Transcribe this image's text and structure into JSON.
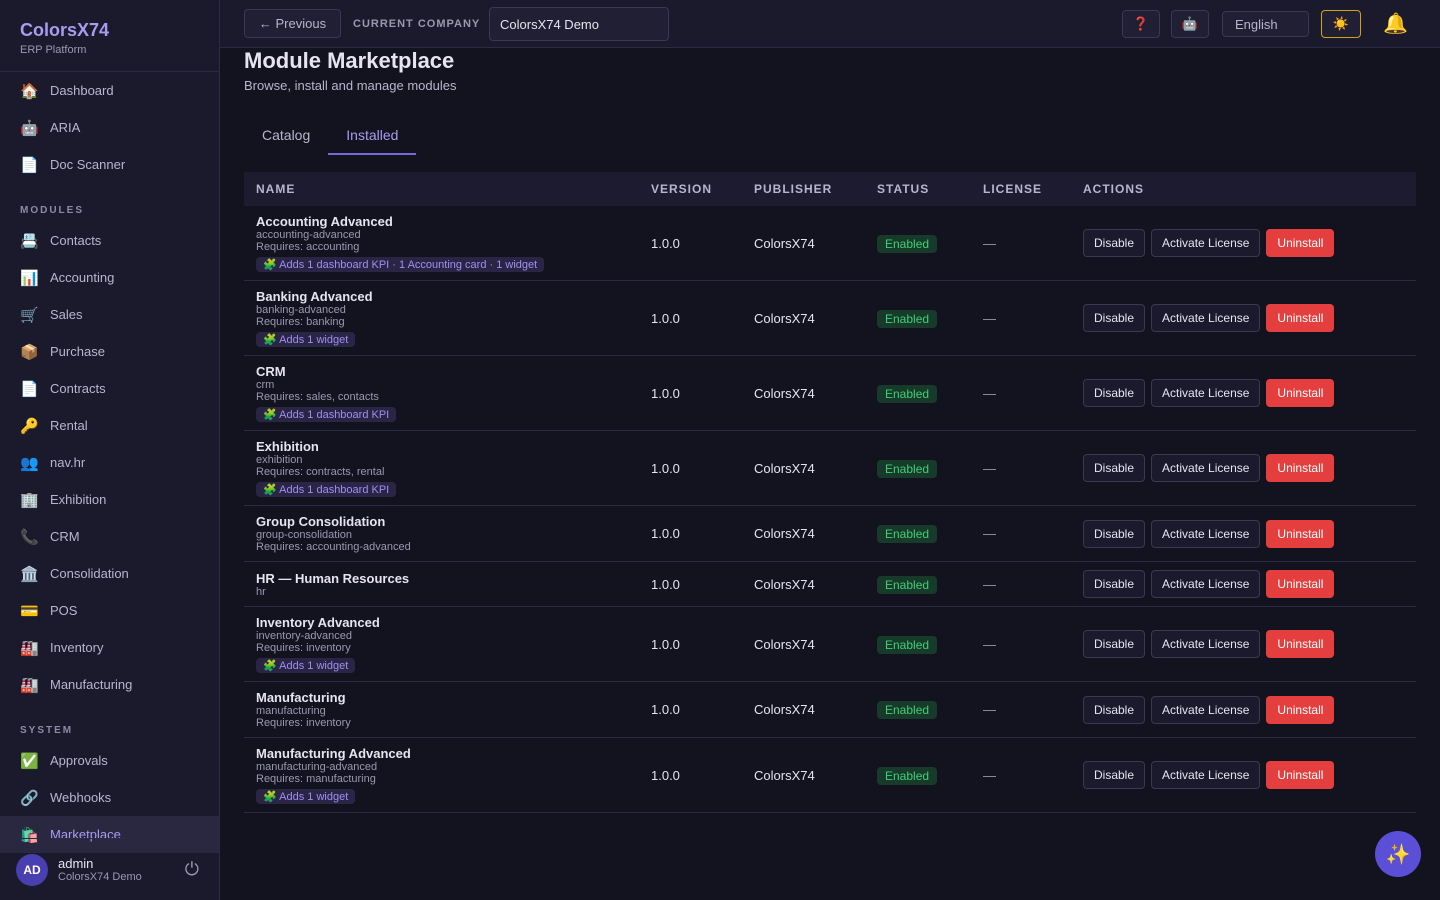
{
  "sidebar": {
    "brand": "ColorsX74",
    "tagline": "ERP Platform",
    "top_items": [
      {
        "icon": "🏠",
        "label": "Dashboard"
      },
      {
        "icon": "🤖",
        "label": "ARIA"
      },
      {
        "icon": "📄",
        "label": "Doc Scanner"
      }
    ],
    "sections": [
      {
        "title": "MODULES",
        "items": [
          {
            "icon": "📇",
            "label": "Contacts"
          },
          {
            "icon": "📊",
            "label": "Accounting"
          },
          {
            "icon": "🛒",
            "label": "Sales"
          },
          {
            "icon": "📦",
            "label": "Purchase"
          },
          {
            "icon": "📄",
            "label": "Contracts"
          },
          {
            "icon": "🔑",
            "label": "Rental"
          },
          {
            "icon": "👥",
            "label": "nav.hr"
          },
          {
            "icon": "🏢",
            "label": "Exhibition"
          },
          {
            "icon": "📞",
            "label": "CRM"
          },
          {
            "icon": "🏛️",
            "label": "Consolidation"
          },
          {
            "icon": "💳",
            "label": "POS"
          },
          {
            "icon": "🏭",
            "label": "Inventory"
          },
          {
            "icon": "🏭",
            "label": "Manufacturing"
          }
        ]
      },
      {
        "title": "SYSTEM",
        "items": [
          {
            "icon": "✅",
            "label": "Approvals"
          },
          {
            "icon": "🔗",
            "label": "Webhooks"
          },
          {
            "icon": "🛍️",
            "label": "Marketplace"
          }
        ]
      }
    ],
    "active": "Marketplace",
    "user": {
      "initials": "AD",
      "name": "admin",
      "company": "ColorsX74 Demo",
      "logout": "⏻"
    }
  },
  "topbar": {
    "previous": "← Previous",
    "company_label": "CURRENT COMPANY",
    "company_value": "ColorsX74 Demo",
    "help": "❓",
    "bot": "🤖",
    "language": "English",
    "theme": "☀️",
    "bell": "🔔"
  },
  "page": {
    "title": "Module Marketplace",
    "subtitle": "Browse, install and manage modules",
    "tabs": [
      "Catalog",
      "Installed"
    ],
    "active_tab": 1
  },
  "table": {
    "columns": [
      "NAME",
      "VERSION",
      "PUBLISHER",
      "STATUS",
      "LICENSE",
      "ACTIONS"
    ],
    "badge_icon": "🧩",
    "actions": [
      "Disable",
      "Activate License",
      "Uninstall"
    ],
    "rows": [
      {
        "name": "Accounting Advanced",
        "slug": "accounting-advanced",
        "requires": "Requires: accounting",
        "adds": "Adds 1 dashboard KPI · 1 Accounting card · 1 widget",
        "version": "1.0.0",
        "publisher": "ColorsX74",
        "status": "Enabled",
        "license": "—"
      },
      {
        "name": "Banking Advanced",
        "slug": "banking-advanced",
        "requires": "Requires: banking",
        "adds": "Adds 1 widget",
        "version": "1.0.0",
        "publisher": "ColorsX74",
        "status": "Enabled",
        "license": "—"
      },
      {
        "name": "CRM",
        "slug": "crm",
        "requires": "Requires: sales, contacts",
        "adds": "Adds 1 dashboard KPI",
        "version": "1.0.0",
        "publisher": "ColorsX74",
        "status": "Enabled",
        "license": "—"
      },
      {
        "name": "Exhibition",
        "slug": "exhibition",
        "requires": "Requires: contracts, rental",
        "adds": "Adds 1 dashboard KPI",
        "version": "1.0.0",
        "publisher": "ColorsX74",
        "status": "Enabled",
        "license": "—"
      },
      {
        "name": "Group Consolidation",
        "slug": "group-consolidation",
        "requires": "Requires: accounting-advanced",
        "version": "1.0.0",
        "publisher": "ColorsX74",
        "status": "Enabled",
        "license": "—"
      },
      {
        "name": "HR — Human Resources",
        "slug": "hr",
        "version": "1.0.0",
        "publisher": "ColorsX74",
        "status": "Enabled",
        "license": "—"
      },
      {
        "name": "Inventory Advanced",
        "slug": "inventory-advanced",
        "requires": "Requires: inventory",
        "adds": "Adds 1 widget",
        "version": "1.0.0",
        "publisher": "ColorsX74",
        "status": "Enabled",
        "license": "—"
      },
      {
        "name": "Manufacturing",
        "slug": "manufacturing",
        "requires": "Requires: inventory",
        "version": "1.0.0",
        "publisher": "ColorsX74",
        "status": "Enabled",
        "license": "—"
      },
      {
        "name": "Manufacturing Advanced",
        "slug": "manufacturing-advanced",
        "requires": "Requires: manufacturing",
        "adds": "Adds 1 widget",
        "version": "1.0.0",
        "publisher": "ColorsX74",
        "status": "Enabled",
        "license": "—"
      }
    ]
  },
  "fab": "✨"
}
